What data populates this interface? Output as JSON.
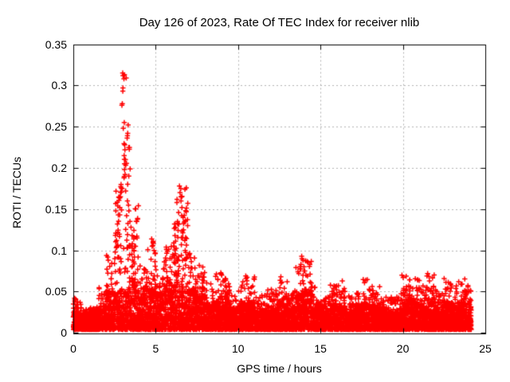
{
  "chart_data": {
    "type": "scatter",
    "title": "Day 126 of 2023, Rate Of TEC Index for receiver nlib",
    "xlabel": "GPS time / hours",
    "ylabel": "ROTI / TECUs",
    "xlim": [
      0,
      25
    ],
    "ylim": [
      0,
      0.35
    ],
    "xticks": [
      [
        0,
        "0"
      ],
      [
        5,
        "5"
      ],
      [
        10,
        "10"
      ],
      [
        15,
        "15"
      ],
      [
        20,
        "20"
      ],
      [
        25,
        "25"
      ]
    ],
    "yticks": [
      [
        0,
        "0"
      ],
      [
        0.05,
        "0.05"
      ],
      [
        0.1,
        "0.1"
      ],
      [
        0.15,
        "0.15"
      ],
      [
        0.2,
        "0.2"
      ],
      [
        0.25,
        "0.25"
      ],
      [
        0.3,
        "0.3"
      ],
      [
        0.35,
        "0.35"
      ]
    ],
    "grid": true,
    "grid_style": "dotted",
    "legend": "none",
    "marker": "plus",
    "marker_color": "#ff0000",
    "grid_color": "#b0b0b0",
    "border_color": "#000000",
    "text_color": "#000000",
    "background_color": "#ffffff",
    "data_time_range_hours": [
      0,
      24.15
    ],
    "baseline_band": {
      "min": 0.004,
      "typical_top": 0.035
    },
    "max_value": 0.315,
    "max_value_hour": 3.0,
    "envelope_bins_0p5h": [
      [
        0.0,
        0.042
      ],
      [
        0.5,
        0.03
      ],
      [
        1.0,
        0.034
      ],
      [
        1.5,
        0.055
      ],
      [
        2.0,
        0.095
      ],
      [
        2.5,
        0.185
      ],
      [
        3.0,
        0.24
      ],
      [
        3.5,
        0.155
      ],
      [
        4.0,
        0.085
      ],
      [
        4.5,
        0.115
      ],
      [
        5.0,
        0.092
      ],
      [
        5.5,
        0.105
      ],
      [
        6.0,
        0.135
      ],
      [
        6.5,
        0.178
      ],
      [
        7.0,
        0.105
      ],
      [
        7.5,
        0.085
      ],
      [
        8.0,
        0.062
      ],
      [
        8.5,
        0.072
      ],
      [
        9.0,
        0.073
      ],
      [
        9.5,
        0.052
      ],
      [
        10.0,
        0.058
      ],
      [
        10.5,
        0.069
      ],
      [
        11.0,
        0.048
      ],
      [
        11.5,
        0.05
      ],
      [
        12.0,
        0.055
      ],
      [
        12.5,
        0.066
      ],
      [
        13.0,
        0.052
      ],
      [
        13.5,
        0.09
      ],
      [
        14.0,
        0.093
      ],
      [
        14.5,
        0.058
      ],
      [
        15.0,
        0.048
      ],
      [
        15.5,
        0.058
      ],
      [
        16.0,
        0.061
      ],
      [
        16.5,
        0.048
      ],
      [
        17.0,
        0.052
      ],
      [
        17.5,
        0.065
      ],
      [
        18.0,
        0.058
      ],
      [
        18.5,
        0.056
      ],
      [
        19.0,
        0.045
      ],
      [
        19.5,
        0.048
      ],
      [
        20.0,
        0.07
      ],
      [
        20.5,
        0.068
      ],
      [
        21.0,
        0.058
      ],
      [
        21.5,
        0.072
      ],
      [
        22.0,
        0.052
      ],
      [
        22.5,
        0.066
      ],
      [
        23.0,
        0.058
      ],
      [
        23.5,
        0.066
      ],
      [
        24.0,
        0.055
      ]
    ],
    "notable_points": [
      [
        2.95,
        0.278
      ],
      [
        2.97,
        0.276
      ],
      [
        3.0,
        0.315
      ],
      [
        3.02,
        0.312
      ],
      [
        3.05,
        0.308
      ],
      [
        3.1,
        0.313
      ],
      [
        3.22,
        0.309
      ],
      [
        3.0,
        0.297
      ],
      [
        3.02,
        0.293
      ],
      [
        3.1,
        0.255
      ],
      [
        3.05,
        0.248
      ],
      [
        3.3,
        0.252
      ],
      [
        3.28,
        0.242
      ],
      [
        3.1,
        0.228
      ],
      [
        3.12,
        0.222
      ],
      [
        3.1,
        0.215
      ],
      [
        3.15,
        0.21
      ],
      [
        3.12,
        0.205
      ],
      [
        3.1,
        0.198
      ],
      [
        3.15,
        0.192
      ],
      [
        3.08,
        0.188
      ],
      [
        2.9,
        0.18
      ],
      [
        2.95,
        0.175
      ],
      [
        3.2,
        0.172
      ],
      [
        2.85,
        0.165
      ],
      [
        3.3,
        0.16
      ],
      [
        3.35,
        0.155
      ],
      [
        2.8,
        0.152
      ],
      [
        3.4,
        0.148
      ],
      [
        2.75,
        0.143
      ],
      [
        2.7,
        0.132
      ],
      [
        2.72,
        0.122
      ],
      [
        2.6,
        0.112
      ],
      [
        3.45,
        0.135
      ],
      [
        3.5,
        0.128
      ],
      [
        3.55,
        0.118
      ],
      [
        2.65,
        0.105
      ],
      [
        3.6,
        0.108
      ],
      [
        2.55,
        0.098
      ],
      [
        3.65,
        0.1
      ],
      [
        2.5,
        0.09
      ],
      [
        3.7,
        0.092
      ],
      [
        6.45,
        0.178
      ],
      [
        6.5,
        0.175
      ],
      [
        6.48,
        0.17
      ],
      [
        6.55,
        0.165
      ],
      [
        6.3,
        0.162
      ],
      [
        6.52,
        0.16
      ],
      [
        6.28,
        0.158
      ],
      [
        6.6,
        0.152
      ],
      [
        6.4,
        0.146
      ],
      [
        6.65,
        0.14
      ],
      [
        6.35,
        0.135
      ],
      [
        6.2,
        0.128
      ],
      [
        6.7,
        0.125
      ],
      [
        6.15,
        0.118
      ],
      [
        6.75,
        0.112
      ],
      [
        6.1,
        0.105
      ],
      [
        6.8,
        0.1
      ],
      [
        6.05,
        0.095
      ],
      [
        6.85,
        0.09
      ],
      [
        4.78,
        0.114
      ],
      [
        4.85,
        0.111
      ],
      [
        4.8,
        0.106
      ],
      [
        4.9,
        0.1
      ],
      [
        4.95,
        0.096
      ],
      [
        13.85,
        0.093
      ],
      [
        13.9,
        0.09
      ],
      [
        13.95,
        0.088
      ],
      [
        13.8,
        0.083
      ],
      [
        14.0,
        0.08
      ],
      [
        13.75,
        0.078
      ],
      [
        14.05,
        0.075
      ],
      [
        13.7,
        0.072
      ],
      [
        14.1,
        0.07
      ],
      [
        8.95,
        0.073
      ],
      [
        9.0,
        0.07
      ],
      [
        9.25,
        0.066
      ],
      [
        10.45,
        0.069
      ],
      [
        10.5,
        0.066
      ],
      [
        10.3,
        0.062
      ],
      [
        12.6,
        0.068
      ],
      [
        11.8,
        0.052
      ],
      [
        2.1,
        0.092
      ],
      [
        2.12,
        0.088
      ],
      [
        21.5,
        0.072
      ],
      [
        21.45,
        0.069
      ],
      [
        19.95,
        0.07
      ],
      [
        20.0,
        0.067
      ],
      [
        16.35,
        0.063
      ],
      [
        15.6,
        0.058
      ],
      [
        17.75,
        0.064
      ],
      [
        18.6,
        0.056
      ],
      [
        22.5,
        0.066
      ],
      [
        23.4,
        0.062
      ],
      [
        0.05,
        0.042
      ],
      [
        0.08,
        0.038
      ],
      [
        0.02,
        0.035
      ]
    ],
    "density_points_per_bin": 150,
    "seed": 20230126
  }
}
